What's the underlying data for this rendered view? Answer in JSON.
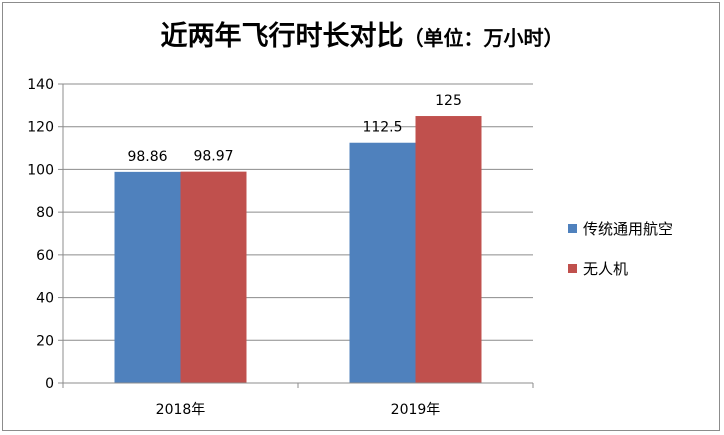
{
  "chart_data": {
    "type": "bar",
    "title": "近两年飞行时长对比",
    "title_unit": "（单位：万小时）",
    "categories": [
      "2018年",
      "2019年"
    ],
    "series": [
      {
        "name": "传统通用航空",
        "values": [
          98.86,
          112.5
        ],
        "labels": [
          "98.86",
          "112.5"
        ],
        "color": "#4f81bd"
      },
      {
        "name": "无人机",
        "values": [
          98.97,
          125
        ],
        "labels": [
          "98.97",
          "125"
        ],
        "color": "#c0504d"
      }
    ],
    "ylim": [
      0,
      140
    ],
    "yticks": [
      0,
      20,
      40,
      60,
      80,
      100,
      120,
      140
    ],
    "grid": true,
    "legend": "right"
  }
}
